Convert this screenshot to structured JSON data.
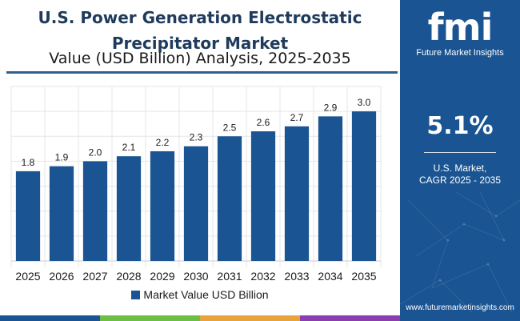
{
  "header": {
    "title_line1": "U.S. Power Generation Electrostatic",
    "title_line2": "Precipitator Market",
    "subtitle": "Value (USD Billion) Analysis, 2025-2035"
  },
  "legend": {
    "label": "Market Value USD Billion"
  },
  "side_panel": {
    "logo_mark": "fmi",
    "logo_text": "Future Market Insights",
    "cagr_value": "5.1%",
    "cagr_label_line1": "U.S. Market,",
    "cagr_label_line2": "CAGR 2025 - 2035",
    "website": "www.futuremarketinsights.com"
  },
  "colors": {
    "bar": "#1a5492",
    "panel": "#1a5492",
    "title": "#1f3b5c",
    "accent_segments": [
      "#1a5492",
      "#6dbe45",
      "#e8a33d",
      "#8a3fb0"
    ]
  },
  "chart_data": {
    "type": "bar",
    "categories": [
      "2025",
      "2026",
      "2027",
      "2028",
      "2029",
      "2030",
      "2031",
      "2032",
      "2033",
      "2034",
      "2035"
    ],
    "series": [
      {
        "name": "Market Value USD Billion",
        "values": [
          1.8,
          1.9,
          2.0,
          2.1,
          2.2,
          2.3,
          2.5,
          2.6,
          2.7,
          2.9,
          3.0
        ]
      }
    ],
    "data_labels": [
      "1.8",
      "1.9",
      "2.0",
      "2.1",
      "2.2",
      "2.3",
      "2.5",
      "2.6",
      "2.7",
      "2.9",
      "3.0"
    ],
    "ylim": [
      0,
      3.5
    ],
    "grid": true,
    "legend_position": "bottom"
  }
}
